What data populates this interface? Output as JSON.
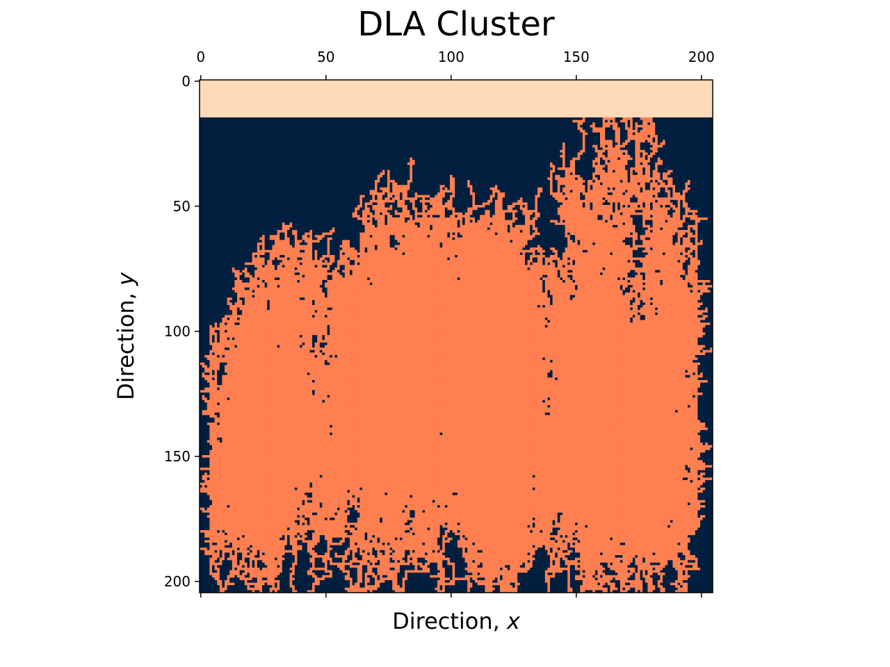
{
  "chart_data": {
    "type": "heatmap",
    "title": "DLA Cluster",
    "xlabel_text": "Direction, ",
    "xlabel_var": "x",
    "ylabel_text": "Direction, ",
    "ylabel_var": "y",
    "grid_size": 205,
    "xlim": [
      0,
      205
    ],
    "ylim": [
      0,
      205
    ],
    "x_ticks": [
      0,
      50,
      100,
      150,
      200
    ],
    "y_ticks": [
      0,
      50,
      100,
      150,
      200
    ],
    "x_tick_labels": [
      "0",
      "50",
      "100",
      "150",
      "200"
    ],
    "y_tick_labels": [
      "0",
      "50",
      "100",
      "150",
      "200"
    ],
    "x_axis_position": "top",
    "y_axis_origin": "top",
    "grid": false,
    "colors": {
      "background": "#001f3f",
      "cluster": "#ff7f50",
      "source_band": "#ffdab9"
    },
    "source_band_rows": [
      0,
      15
    ],
    "cluster_depth_range": [
      15,
      205
    ],
    "cluster_columns": [
      4,
      198
    ]
  }
}
